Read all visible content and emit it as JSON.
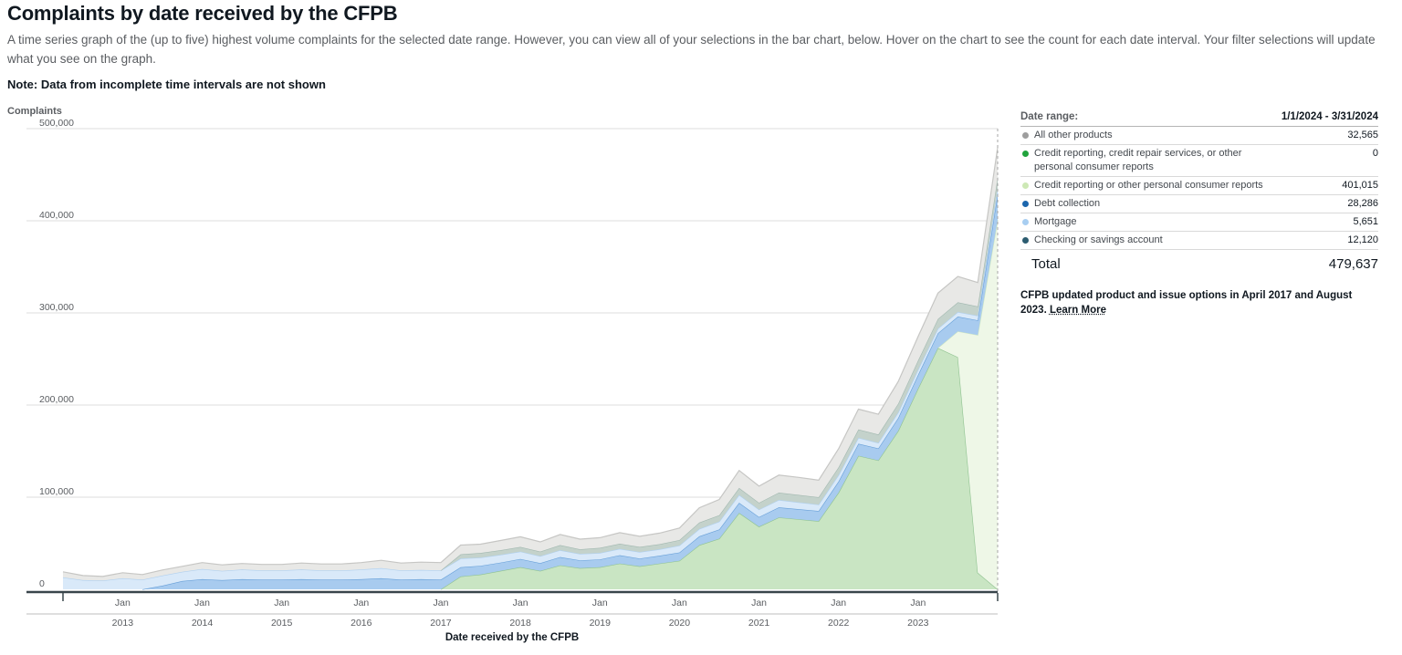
{
  "header": {
    "title": "Complaints by date received by the CFPB",
    "description": "A time series graph of the (up to five) highest volume complaints for the selected date range. However, you can view all of your selections in the bar chart, below. Hover on the chart to see the count for each date interval. Your filter selections will update what you see on the graph.",
    "note": "Note:  Data from incomplete time intervals are not shown"
  },
  "legend": {
    "rows": [
      {
        "type": "range",
        "name": "date-range",
        "label": "Date range:",
        "value": "1/1/2024 - 3/31/2024"
      },
      {
        "type": "item",
        "name": "all-other-products",
        "dot": "#9e9e9e",
        "label": "All other products",
        "value": "32,565"
      },
      {
        "type": "item",
        "name": "credit-reporting-old",
        "dot": "#21a33c",
        "label": "Credit reporting, credit repair services, or other",
        "label2": "personal consumer reports",
        "value": "0"
      },
      {
        "type": "item",
        "name": "credit-reporting-new",
        "dot": "#cde8b5",
        "label": "Credit reporting or other personal consumer reports",
        "value": "401,015"
      },
      {
        "type": "item",
        "name": "debt-collection",
        "dot": "#1c66ad",
        "label": "Debt collection",
        "value": "28,286"
      },
      {
        "type": "item",
        "name": "mortgage",
        "dot": "#a8cef1",
        "label": "Mortgage",
        "value": "5,651"
      },
      {
        "type": "item",
        "name": "checking-savings",
        "dot": "#2c5c70",
        "label": "Checking or savings account",
        "value": "12,120"
      },
      {
        "type": "total",
        "name": "total",
        "label": "Total",
        "value": "479,637"
      }
    ],
    "footnote": "CFPB updated product and issue options in April 2017 and August 2023.",
    "learn_more_label": "Learn More"
  },
  "chart_data": {
    "type": "area",
    "stacked": true,
    "interval": "quarterly",
    "values_unit": "thousands of complaints per quarter",
    "ylabel": "Complaints",
    "xlabel": "Date received by the CFPB",
    "ylim_thousands": [
      0,
      500
    ],
    "grid": true,
    "legend_position": "right-panel",
    "end_boundary_year": 2024.0,
    "y_ticks": [
      {
        "v": 0,
        "label": "0"
      },
      {
        "v": 100,
        "label": "100,000"
      },
      {
        "v": 200,
        "label": "200,000"
      },
      {
        "v": 300,
        "label": "300,000"
      },
      {
        "v": 400,
        "label": "400,000"
      },
      {
        "v": 500,
        "label": "500,000"
      }
    ],
    "x_ticks": [
      {
        "year": 2013,
        "top": "Jan",
        "bottom": "2013"
      },
      {
        "year": 2014,
        "top": "Jan",
        "bottom": "2014"
      },
      {
        "year": 2015,
        "top": "Jan",
        "bottom": "2015"
      },
      {
        "year": 2016,
        "top": "Jan",
        "bottom": "2016"
      },
      {
        "year": 2017,
        "top": "Jan",
        "bottom": "2017"
      },
      {
        "year": 2018,
        "top": "Jan",
        "bottom": "2018"
      },
      {
        "year": 2019,
        "top": "Jan",
        "bottom": "2019"
      },
      {
        "year": 2020,
        "top": "Jan",
        "bottom": "2020"
      },
      {
        "year": 2021,
        "top": "Jan",
        "bottom": "2021"
      },
      {
        "year": 2022,
        "top": "Jan",
        "bottom": "2022"
      },
      {
        "year": 2023,
        "top": "Jan",
        "bottom": "2023"
      }
    ],
    "x": [
      2012.25,
      2012.5,
      2012.75,
      2013.0,
      2013.25,
      2013.5,
      2013.75,
      2014.0,
      2014.25,
      2014.5,
      2014.75,
      2015.0,
      2015.25,
      2015.5,
      2015.75,
      2016.0,
      2016.25,
      2016.5,
      2016.75,
      2017.0,
      2017.25,
      2017.5,
      2017.75,
      2018.0,
      2018.25,
      2018.5,
      2018.75,
      2019.0,
      2019.25,
      2019.5,
      2019.75,
      2020.0,
      2020.25,
      2020.5,
      2020.75,
      2021.0,
      2021.25,
      2021.5,
      2021.75,
      2022.0,
      2022.25,
      2022.5,
      2022.75,
      2023.0,
      2023.25,
      2023.5,
      2023.75,
      2024.0
    ],
    "series": [
      {
        "id": "credit-reporting-old",
        "name": "Credit reporting, credit repair services, or other personal consumer reports",
        "fill": "#c9e5c3",
        "stroke": "#8fc290",
        "values": [
          0,
          0,
          0,
          0,
          0,
          0,
          0,
          0,
          0,
          0,
          0,
          0,
          0,
          0,
          0,
          0,
          0,
          0,
          0,
          0,
          14,
          16,
          20,
          24,
          20,
          26,
          23,
          24,
          28,
          25,
          28,
          31,
          48,
          55,
          83,
          68,
          78,
          76,
          74,
          105,
          145,
          140,
          172,
          218,
          262,
          252,
          18,
          0
        ]
      },
      {
        "id": "credit-reporting-new",
        "name": "Credit reporting or other personal consumer reports",
        "fill": "#eef7e7",
        "stroke": "#cfe7c0",
        "values": [
          0,
          0,
          0,
          0,
          0,
          0,
          0,
          0,
          0,
          0,
          0,
          0,
          0,
          0,
          0,
          0,
          0,
          0,
          0,
          0,
          0,
          0,
          0,
          0,
          0,
          0,
          0,
          0,
          0,
          0,
          0,
          0,
          0,
          0,
          0,
          0,
          0,
          0,
          0,
          0,
          0,
          0,
          0,
          0,
          0,
          28,
          258,
          401.015
        ]
      },
      {
        "id": "debt-collection",
        "name": "Debt collection",
        "fill": "#a8cbef",
        "stroke": "#669fd8",
        "values": [
          0,
          0,
          0,
          0,
          0,
          4,
          9,
          11,
          10,
          11,
          10.5,
          10.5,
          11,
          10.5,
          10.5,
          11,
          12,
          10.5,
          11,
          10.5,
          10,
          9.5,
          9,
          9,
          8.5,
          9,
          8.5,
          8.5,
          9,
          8.5,
          8.5,
          9,
          9.5,
          10,
          11,
          10.5,
          11,
          11,
          11,
          12,
          13,
          13,
          14,
          15,
          16,
          16,
          16,
          28.286
        ]
      },
      {
        "id": "mortgage",
        "name": "Mortgage",
        "fill": "#d9e9f9",
        "stroke": "#b0d0ef",
        "values": [
          13,
          10,
          9.5,
          12,
          10.5,
          11,
          10,
          11,
          10,
          10.5,
          10,
          10,
          10.5,
          10,
          10,
          10.5,
          11,
          10,
          10,
          10,
          9.5,
          9,
          8.5,
          8,
          7.5,
          7.5,
          7,
          7,
          7,
          7,
          7,
          7.5,
          8,
          8.5,
          8.5,
          8,
          8,
          7.5,
          7,
          7,
          6.5,
          6,
          6,
          5.5,
          5,
          5,
          5,
          5.651
        ]
      },
      {
        "id": "checking-savings",
        "name": "Checking or savings account",
        "fill": "#c4d2cb",
        "stroke": "#a2b8b0",
        "values": [
          0,
          0,
          0,
          0,
          0,
          0,
          0,
          0,
          0,
          0,
          0,
          0,
          0,
          0,
          0,
          0,
          0,
          0,
          0,
          0,
          4.5,
          5,
          5,
          5,
          5,
          5.5,
          5,
          5.5,
          5.5,
          5.5,
          5.5,
          6,
          7,
          7,
          7.5,
          7.5,
          8,
          8,
          8,
          8.5,
          9,
          9,
          9.5,
          10,
          10.5,
          10.5,
          10,
          12.12
        ]
      },
      {
        "id": "all-other-products",
        "name": "All other products",
        "fill": "#e8e8e6",
        "stroke": "#c6c6c4",
        "values": [
          6,
          5,
          4.5,
          6,
          5.5,
          6,
          6,
          7,
          6.5,
          6.5,
          6.5,
          6.5,
          7,
          7,
          7,
          7.5,
          8.5,
          8,
          8.5,
          8.5,
          10,
          9.5,
          10.5,
          11,
          10.5,
          11.5,
          11,
          11,
          12,
          11.5,
          12,
          13,
          16,
          17,
          19,
          18,
          19,
          19,
          18.5,
          20,
          22,
          22,
          24,
          26,
          28,
          28,
          26,
          32.565
        ]
      }
    ]
  }
}
